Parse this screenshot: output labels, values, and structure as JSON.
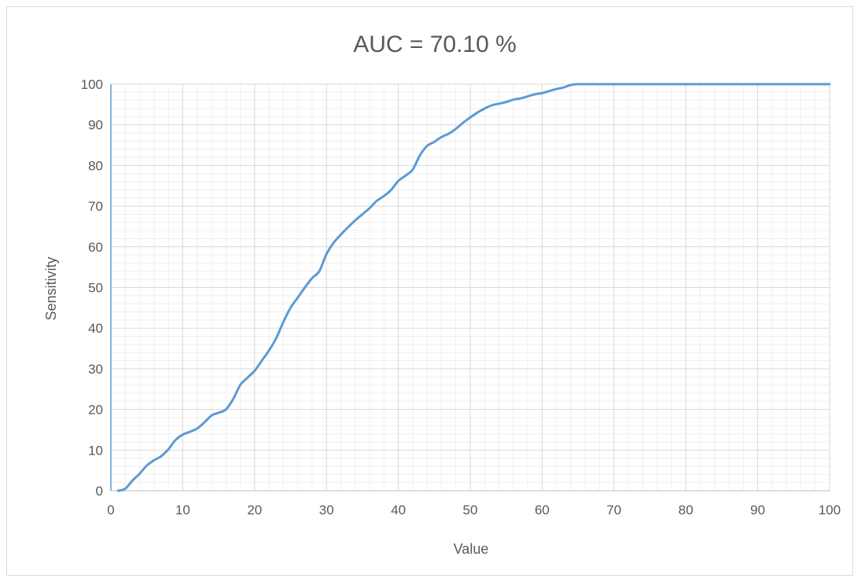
{
  "chart_data": {
    "type": "line",
    "title": "AUC = 70.10 %",
    "xlabel": "Value",
    "ylabel": "Sensitivity",
    "xlim": [
      0,
      100
    ],
    "ylim": [
      0,
      100
    ],
    "x_ticks": [
      0,
      10,
      20,
      30,
      40,
      50,
      60,
      70,
      80,
      90,
      100
    ],
    "y_ticks": [
      0,
      10,
      20,
      30,
      40,
      50,
      60,
      70,
      80,
      90,
      100
    ],
    "grid": {
      "major": true,
      "minor": true
    },
    "legend": "none",
    "series": [
      {
        "color": "#5b9bd5",
        "x": [
          1,
          2,
          3,
          4,
          5,
          6,
          7,
          8,
          9,
          10,
          11,
          12,
          13,
          14,
          15,
          16,
          17,
          18,
          19,
          20,
          21,
          22,
          23,
          24,
          25,
          26,
          27,
          28,
          29,
          30,
          31,
          32,
          33,
          34,
          35,
          36,
          37,
          38,
          39,
          40,
          41,
          42,
          43,
          44,
          45,
          46,
          47,
          48,
          49,
          50,
          51,
          52,
          53,
          54,
          55,
          56,
          57,
          58,
          59,
          60,
          61,
          62,
          63,
          64,
          65,
          66,
          70,
          80,
          90,
          100
        ],
        "y": [
          0,
          0.5,
          2.5,
          4.2,
          6.2,
          7.5,
          8.5,
          10.2,
          12.5,
          13.8,
          14.5,
          15.3,
          16.8,
          18.5,
          19.2,
          20,
          22.5,
          26,
          27.8,
          29.5,
          32,
          34.5,
          37.5,
          41.5,
          45,
          47.5,
          50,
          52.3,
          54,
          58.2,
          61,
          63,
          64.8,
          66.5,
          68,
          69.5,
          71.3,
          72.5,
          74,
          76.2,
          77.5,
          79,
          82.5,
          84.8,
          85.8,
          87,
          87.8,
          89,
          90.5,
          91.8,
          93,
          94,
          94.8,
          95.2,
          95.6,
          96.2,
          96.5,
          97,
          97.5,
          97.8,
          98.3,
          98.8,
          99.2,
          99.8,
          100,
          100,
          100,
          100,
          100,
          100
        ]
      }
    ]
  }
}
